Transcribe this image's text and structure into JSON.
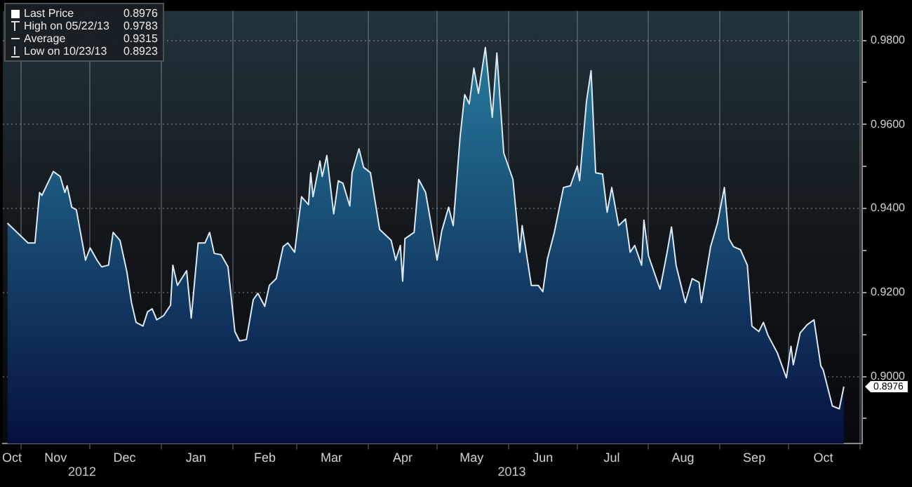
{
  "chart_data": {
    "type": "area",
    "legend": "top left",
    "grid": true,
    "x": [
      "2012-10-26",
      "2012-11-04",
      "2012-11-07",
      "2012-11-09",
      "2012-11-10",
      "2012-11-15",
      "2012-11-18",
      "2012-11-20",
      "2012-11-21",
      "2012-11-23",
      "2012-11-25",
      "2012-11-29",
      "2012-12-01",
      "2012-12-04",
      "2012-12-06",
      "2012-12-09",
      "2012-12-11",
      "2012-12-14",
      "2012-12-17",
      "2012-12-19",
      "2012-12-21",
      "2012-12-24",
      "2012-12-26",
      "2012-12-28",
      "2012-12-30",
      "2013-01-02",
      "2013-01-05",
      "2013-01-06",
      "2013-01-08",
      "2013-01-12",
      "2013-01-14",
      "2013-01-17",
      "2013-01-20",
      "2013-01-22",
      "2013-01-24",
      "2013-01-27",
      "2013-01-30",
      "2013-02-02",
      "2013-02-04",
      "2013-02-07",
      "2013-02-10",
      "2013-02-12",
      "2013-02-15",
      "2013-02-17",
      "2013-02-20",
      "2013-02-23",
      "2013-02-25",
      "2013-02-28",
      "2013-03-03",
      "2013-03-06",
      "2013-03-07",
      "2013-03-08",
      "2013-03-11",
      "2013-03-12",
      "2013-03-14",
      "2013-03-17",
      "2013-03-19",
      "2013-03-21",
      "2013-03-24",
      "2013-03-25",
      "2013-03-28",
      "2013-03-30",
      "2013-04-02",
      "2013-04-06",
      "2013-04-11",
      "2013-04-13",
      "2013-04-15",
      "2013-04-16",
      "2013-04-17",
      "2013-04-21",
      "2013-04-23",
      "2013-04-26",
      "2013-04-28",
      "2013-05-01",
      "2013-05-03",
      "2013-05-06",
      "2013-05-08",
      "2013-05-11",
      "2013-05-13",
      "2013-05-15",
      "2013-05-17",
      "2013-05-19",
      "2013-05-22",
      "2013-05-25",
      "2013-05-27",
      "2013-05-30",
      "2013-06-03",
      "2013-06-06",
      "2013-06-07",
      "2013-06-11",
      "2013-06-14",
      "2013-06-16",
      "2013-06-18",
      "2013-06-21",
      "2013-06-25",
      "2013-06-28",
      "2013-07-01",
      "2013-07-02",
      "2013-07-05",
      "2013-07-07",
      "2013-07-09",
      "2013-07-12",
      "2013-07-14",
      "2013-07-16",
      "2013-07-19",
      "2013-07-22",
      "2013-07-24",
      "2013-07-26",
      "2013-07-29",
      "2013-07-30",
      "2013-08-01",
      "2013-08-06",
      "2013-08-09",
      "2013-08-11",
      "2013-08-13",
      "2013-08-17",
      "2013-08-20",
      "2013-08-23",
      "2013-08-24",
      "2013-08-28",
      "2013-08-31",
      "2013-09-03",
      "2013-09-05",
      "2013-09-07",
      "2013-09-10",
      "2013-09-13",
      "2013-09-15",
      "2013-09-18",
      "2013-09-20",
      "2013-09-22",
      "2013-09-26",
      "2013-09-30",
      "2013-10-02",
      "2013-10-03",
      "2013-10-06",
      "2013-10-09",
      "2013-10-12",
      "2013-10-15",
      "2013-10-16",
      "2013-10-20",
      "2013-10-23",
      "2013-10-25"
    ],
    "series": [
      {
        "name": "Last Price",
        "color": "#2a86a6",
        "values": [
          0.9365,
          0.9318,
          0.9318,
          0.9438,
          0.9431,
          0.9488,
          0.9476,
          0.9438,
          0.9454,
          0.9403,
          0.9397,
          0.9277,
          0.9306,
          0.9277,
          0.9261,
          0.9265,
          0.9343,
          0.9324,
          0.9249,
          0.9176,
          0.9129,
          0.912,
          0.9154,
          0.9161,
          0.9135,
          0.9145,
          0.917,
          0.9265,
          0.9217,
          0.9252,
          0.9139,
          0.9318,
          0.9318,
          0.9343,
          0.9293,
          0.929,
          0.9261,
          0.9107,
          0.9085,
          0.9088,
          0.9183,
          0.9198,
          0.9167,
          0.9217,
          0.9233,
          0.9309,
          0.9318,
          0.9296,
          0.9428,
          0.9409,
          0.9485,
          0.9428,
          0.9513,
          0.9476,
          0.9526,
          0.9387,
          0.9466,
          0.946,
          0.9406,
          0.9485,
          0.9542,
          0.9498,
          0.9485,
          0.935,
          0.9324,
          0.9277,
          0.9312,
          0.9227,
          0.9328,
          0.9343,
          0.9469,
          0.9438,
          0.9375,
          0.9277,
          0.9346,
          0.9403,
          0.9359,
          0.957,
          0.9671,
          0.9649,
          0.9734,
          0.9674,
          0.9783,
          0.9617,
          0.977,
          0.9532,
          0.9469,
          0.9296,
          0.9359,
          0.9217,
          0.9217,
          0.9202,
          0.928,
          0.9343,
          0.945,
          0.9454,
          0.9501,
          0.9466,
          0.9655,
          0.9728,
          0.9485,
          0.9482,
          0.9391,
          0.945,
          0.9359,
          0.9375,
          0.9296,
          0.9312,
          0.9265,
          0.9372,
          0.9287,
          0.9208,
          0.9293,
          0.9356,
          0.9265,
          0.9176,
          0.9233,
          0.9224,
          0.9176,
          0.9309,
          0.9365,
          0.945,
          0.9328,
          0.9309,
          0.9302,
          0.9265,
          0.912,
          0.9107,
          0.9129,
          0.9098,
          0.9057,
          0.8997,
          0.9072,
          0.9028,
          0.9104,
          0.9123,
          0.9135,
          0.9025,
          0.9016,
          0.893,
          0.8923,
          0.8976
        ]
      }
    ],
    "xlim": [
      "2012-10-24",
      "2013-11-02"
    ],
    "xticks": [
      {
        "value": "2012-10-28",
        "label": "Oct"
      },
      {
        "value": "2012-11-01",
        "label": null
      },
      {
        "value": "2012-11-16",
        "label": "Nov"
      },
      {
        "value": "2012-12-01",
        "label": null
      },
      {
        "value": "2012-12-16",
        "label": "Dec"
      },
      {
        "value": "2013-01-01",
        "label": null
      },
      {
        "value": "2013-01-16",
        "label": "Jan"
      },
      {
        "value": "2013-02-01",
        "label": null
      },
      {
        "value": "2013-02-15",
        "label": "Feb"
      },
      {
        "value": "2013-03-01",
        "label": null
      },
      {
        "value": "2013-03-16",
        "label": "Mar"
      },
      {
        "value": "2013-04-01",
        "label": null
      },
      {
        "value": "2013-04-16",
        "label": "Apr"
      },
      {
        "value": "2013-05-01",
        "label": null
      },
      {
        "value": "2013-05-16",
        "label": "May"
      },
      {
        "value": "2013-06-01",
        "label": null
      },
      {
        "value": "2013-06-16",
        "label": "Jun"
      },
      {
        "value": "2013-07-01",
        "label": null
      },
      {
        "value": "2013-07-16",
        "label": "Jul"
      },
      {
        "value": "2013-08-01",
        "label": null
      },
      {
        "value": "2013-08-16",
        "label": "Aug"
      },
      {
        "value": "2013-09-01",
        "label": null
      },
      {
        "value": "2013-09-16",
        "label": "Sep"
      },
      {
        "value": "2013-10-01",
        "label": null
      },
      {
        "value": "2013-10-16",
        "label": "Oct"
      },
      {
        "value": "2013-11-01",
        "label": null
      }
    ],
    "ylim": [
      0.884,
      0.987
    ],
    "yticks": [
      {
        "value": 0.89,
        "label": null
      },
      {
        "value": 0.9,
        "label": "0.9000"
      },
      {
        "value": 0.91,
        "label": null
      },
      {
        "value": 0.92,
        "label": "0.9200"
      },
      {
        "value": 0.93,
        "label": null
      },
      {
        "value": 0.94,
        "label": "0.9400"
      },
      {
        "value": 0.95,
        "label": null
      },
      {
        "value": 0.96,
        "label": "0.9600"
      },
      {
        "value": 0.97,
        "label": null
      },
      {
        "value": 0.98,
        "label": "0.9800"
      }
    ],
    "annotations": [
      "0.8976",
      "High on 05/22/13",
      "0.9783",
      "Average",
      "0.9315",
      "Low on 10/23/13",
      "0.8923",
      "2012",
      "2013",
      "0.8976"
    ]
  }
}
